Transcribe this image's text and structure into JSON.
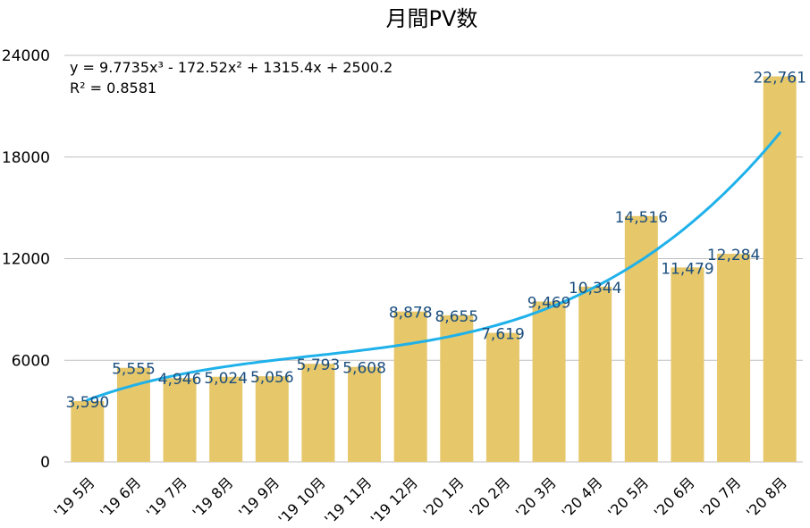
{
  "chart_data": {
    "type": "bar",
    "title": "月間PV数",
    "xlabel": "",
    "ylabel": "",
    "categories": [
      "'19 5月",
      "'19 6月",
      "'19 7月",
      "'19 8月",
      "'19 9月",
      "'19 10月",
      "'19 11月",
      "'19 12月",
      "'20 1月",
      "'20 2月",
      "'20 3月",
      "'20 4月",
      "'20 5月",
      "'20 6月",
      "'20 7月",
      "'20 8月"
    ],
    "values": [
      3590,
      5555,
      4946,
      5024,
      5056,
      5793,
      5608,
      8878,
      8655,
      7619,
      9469,
      10344,
      14516,
      11479,
      12284,
      22761
    ],
    "data_labels": [
      "3,590",
      "5,555",
      "4,946",
      "5,024",
      "5,056",
      "5,793",
      "5,608",
      "8,878",
      "8,655",
      "7,619",
      "9,469",
      "10,344",
      "14,516",
      "11,479",
      "12,284",
      "22,761"
    ],
    "ylim": [
      0,
      24000
    ],
    "yticks": [
      0,
      6000,
      12000,
      18000,
      24000
    ],
    "grid": true,
    "legend": "none",
    "trendline": {
      "type": "polynomial",
      "order": 3,
      "coefficients": [
        9.7735,
        -172.52,
        1315.4,
        2500.2
      ],
      "equation": "y = 9.7735x³ - 172.52x² + 1315.4x + 2500.2",
      "r_squared": "R² = 0.8581"
    },
    "colors": {
      "bar": "#e6c76a",
      "trendline": "#1fb1ea",
      "data_label": "#1b4e7e",
      "grid": "#bfbfbf",
      "text": "#000000"
    }
  }
}
